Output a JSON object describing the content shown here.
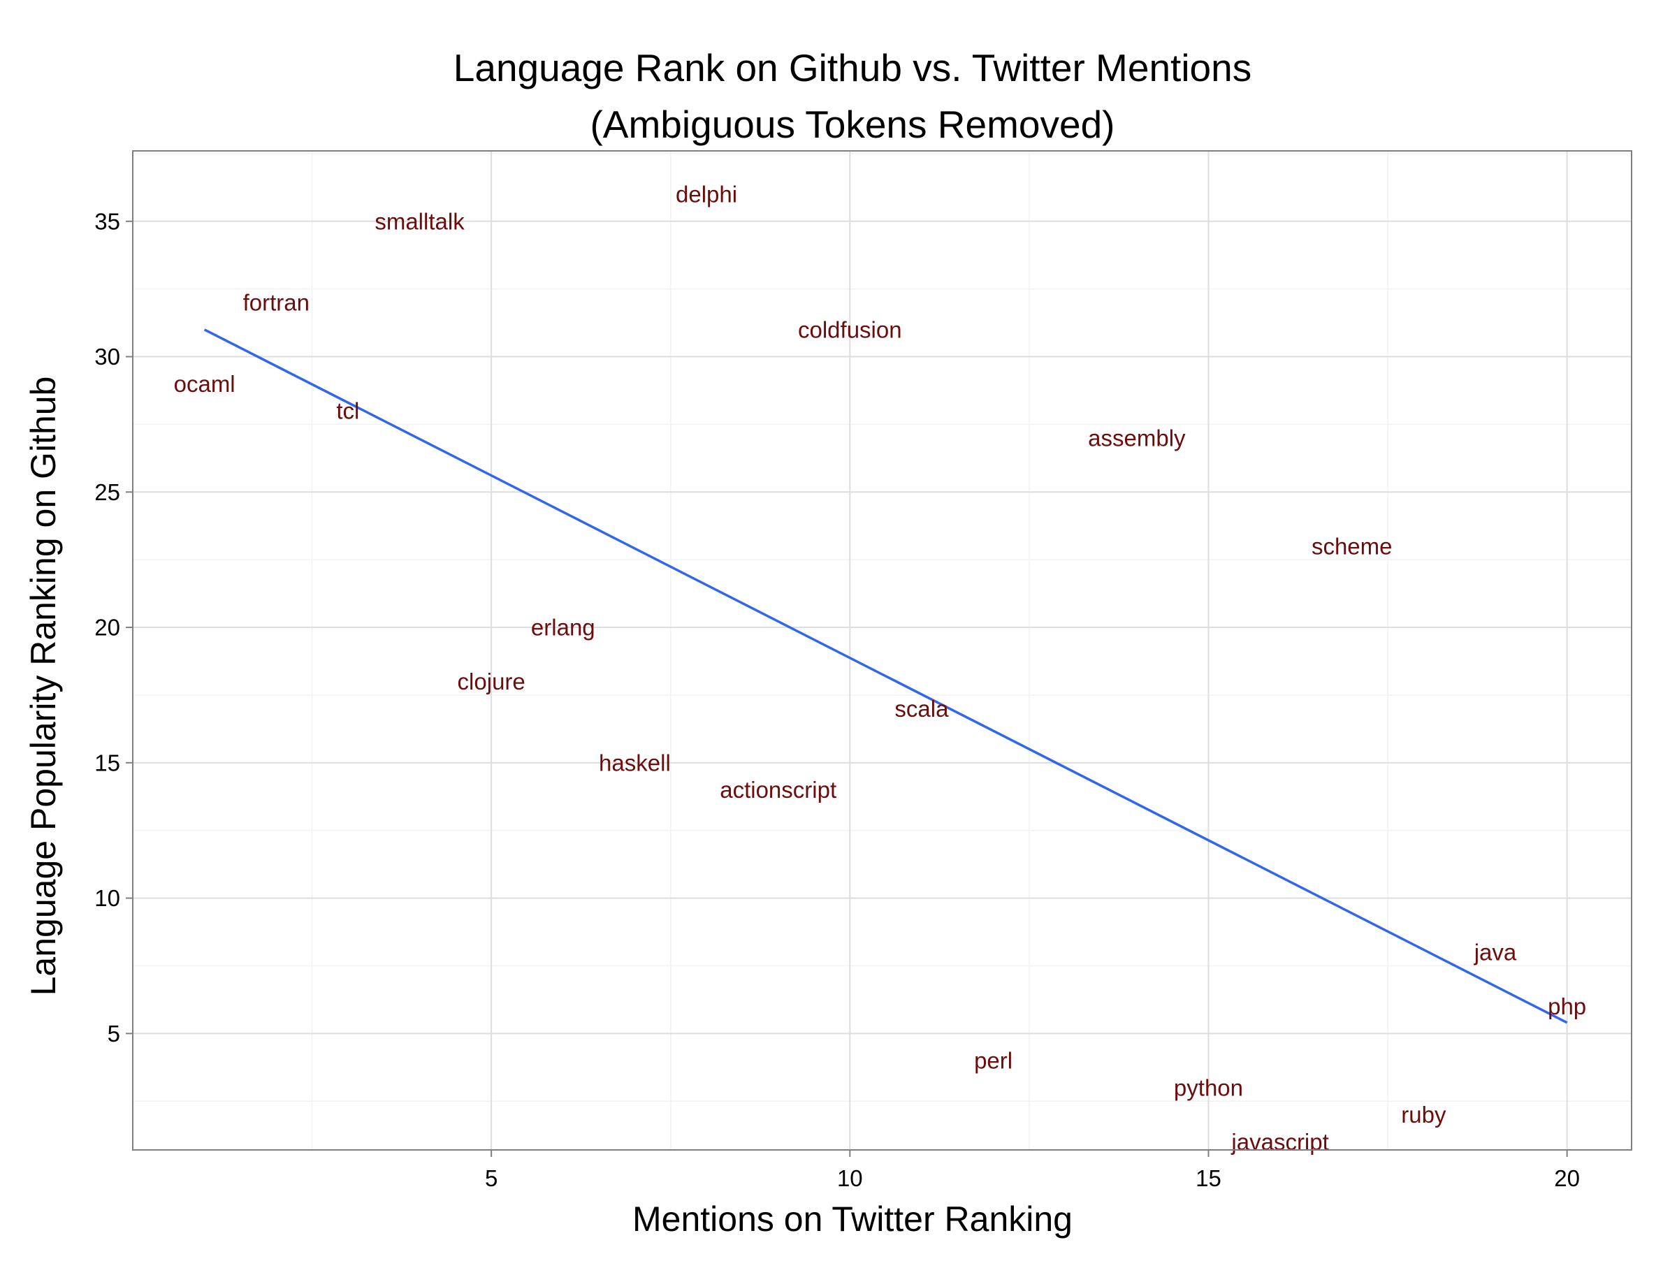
{
  "chart_data": {
    "type": "scatter",
    "title_line1": "Language Rank on Github vs. Twitter Mentions",
    "title_line2": "(Ambiguous Tokens Removed)",
    "xlabel": "Mentions on Twitter Ranking",
    "ylabel": "Language Popularity Ranking on Github",
    "xlim": [
      0.0,
      20.9
    ],
    "ylim": [
      0.7,
      37.6
    ],
    "xticks": [
      5,
      10,
      15,
      20
    ],
    "yticks": [
      5,
      10,
      15,
      20,
      25,
      30,
      35
    ],
    "grid": true,
    "label_color": "#6b0d0d",
    "trend_color": "#3366ee",
    "points": [
      {
        "label": "ocaml",
        "x": 1,
        "y": 29
      },
      {
        "label": "fortran",
        "x": 2,
        "y": 32
      },
      {
        "label": "tcl",
        "x": 3,
        "y": 28
      },
      {
        "label": "smalltalk",
        "x": 4,
        "y": 35
      },
      {
        "label": "clojure",
        "x": 5,
        "y": 18
      },
      {
        "label": "erlang",
        "x": 6,
        "y": 20
      },
      {
        "label": "haskell",
        "x": 7,
        "y": 15
      },
      {
        "label": "delphi",
        "x": 8,
        "y": 36
      },
      {
        "label": "actionscript",
        "x": 9,
        "y": 14
      },
      {
        "label": "coldfusion",
        "x": 10,
        "y": 31
      },
      {
        "label": "scala",
        "x": 11,
        "y": 17
      },
      {
        "label": "perl",
        "x": 12,
        "y": 4
      },
      {
        "label": "assembly",
        "x": 14,
        "y": 27
      },
      {
        "label": "python",
        "x": 15,
        "y": 3
      },
      {
        "label": "javascript",
        "x": 16,
        "y": 1
      },
      {
        "label": "scheme",
        "x": 17,
        "y": 23
      },
      {
        "label": "ruby",
        "x": 18,
        "y": 2
      },
      {
        "label": "java",
        "x": 19,
        "y": 8
      },
      {
        "label": "php",
        "x": 20,
        "y": 6
      }
    ],
    "trend_line": {
      "x": [
        1,
        20
      ],
      "y": [
        31.0,
        5.4
      ]
    }
  }
}
